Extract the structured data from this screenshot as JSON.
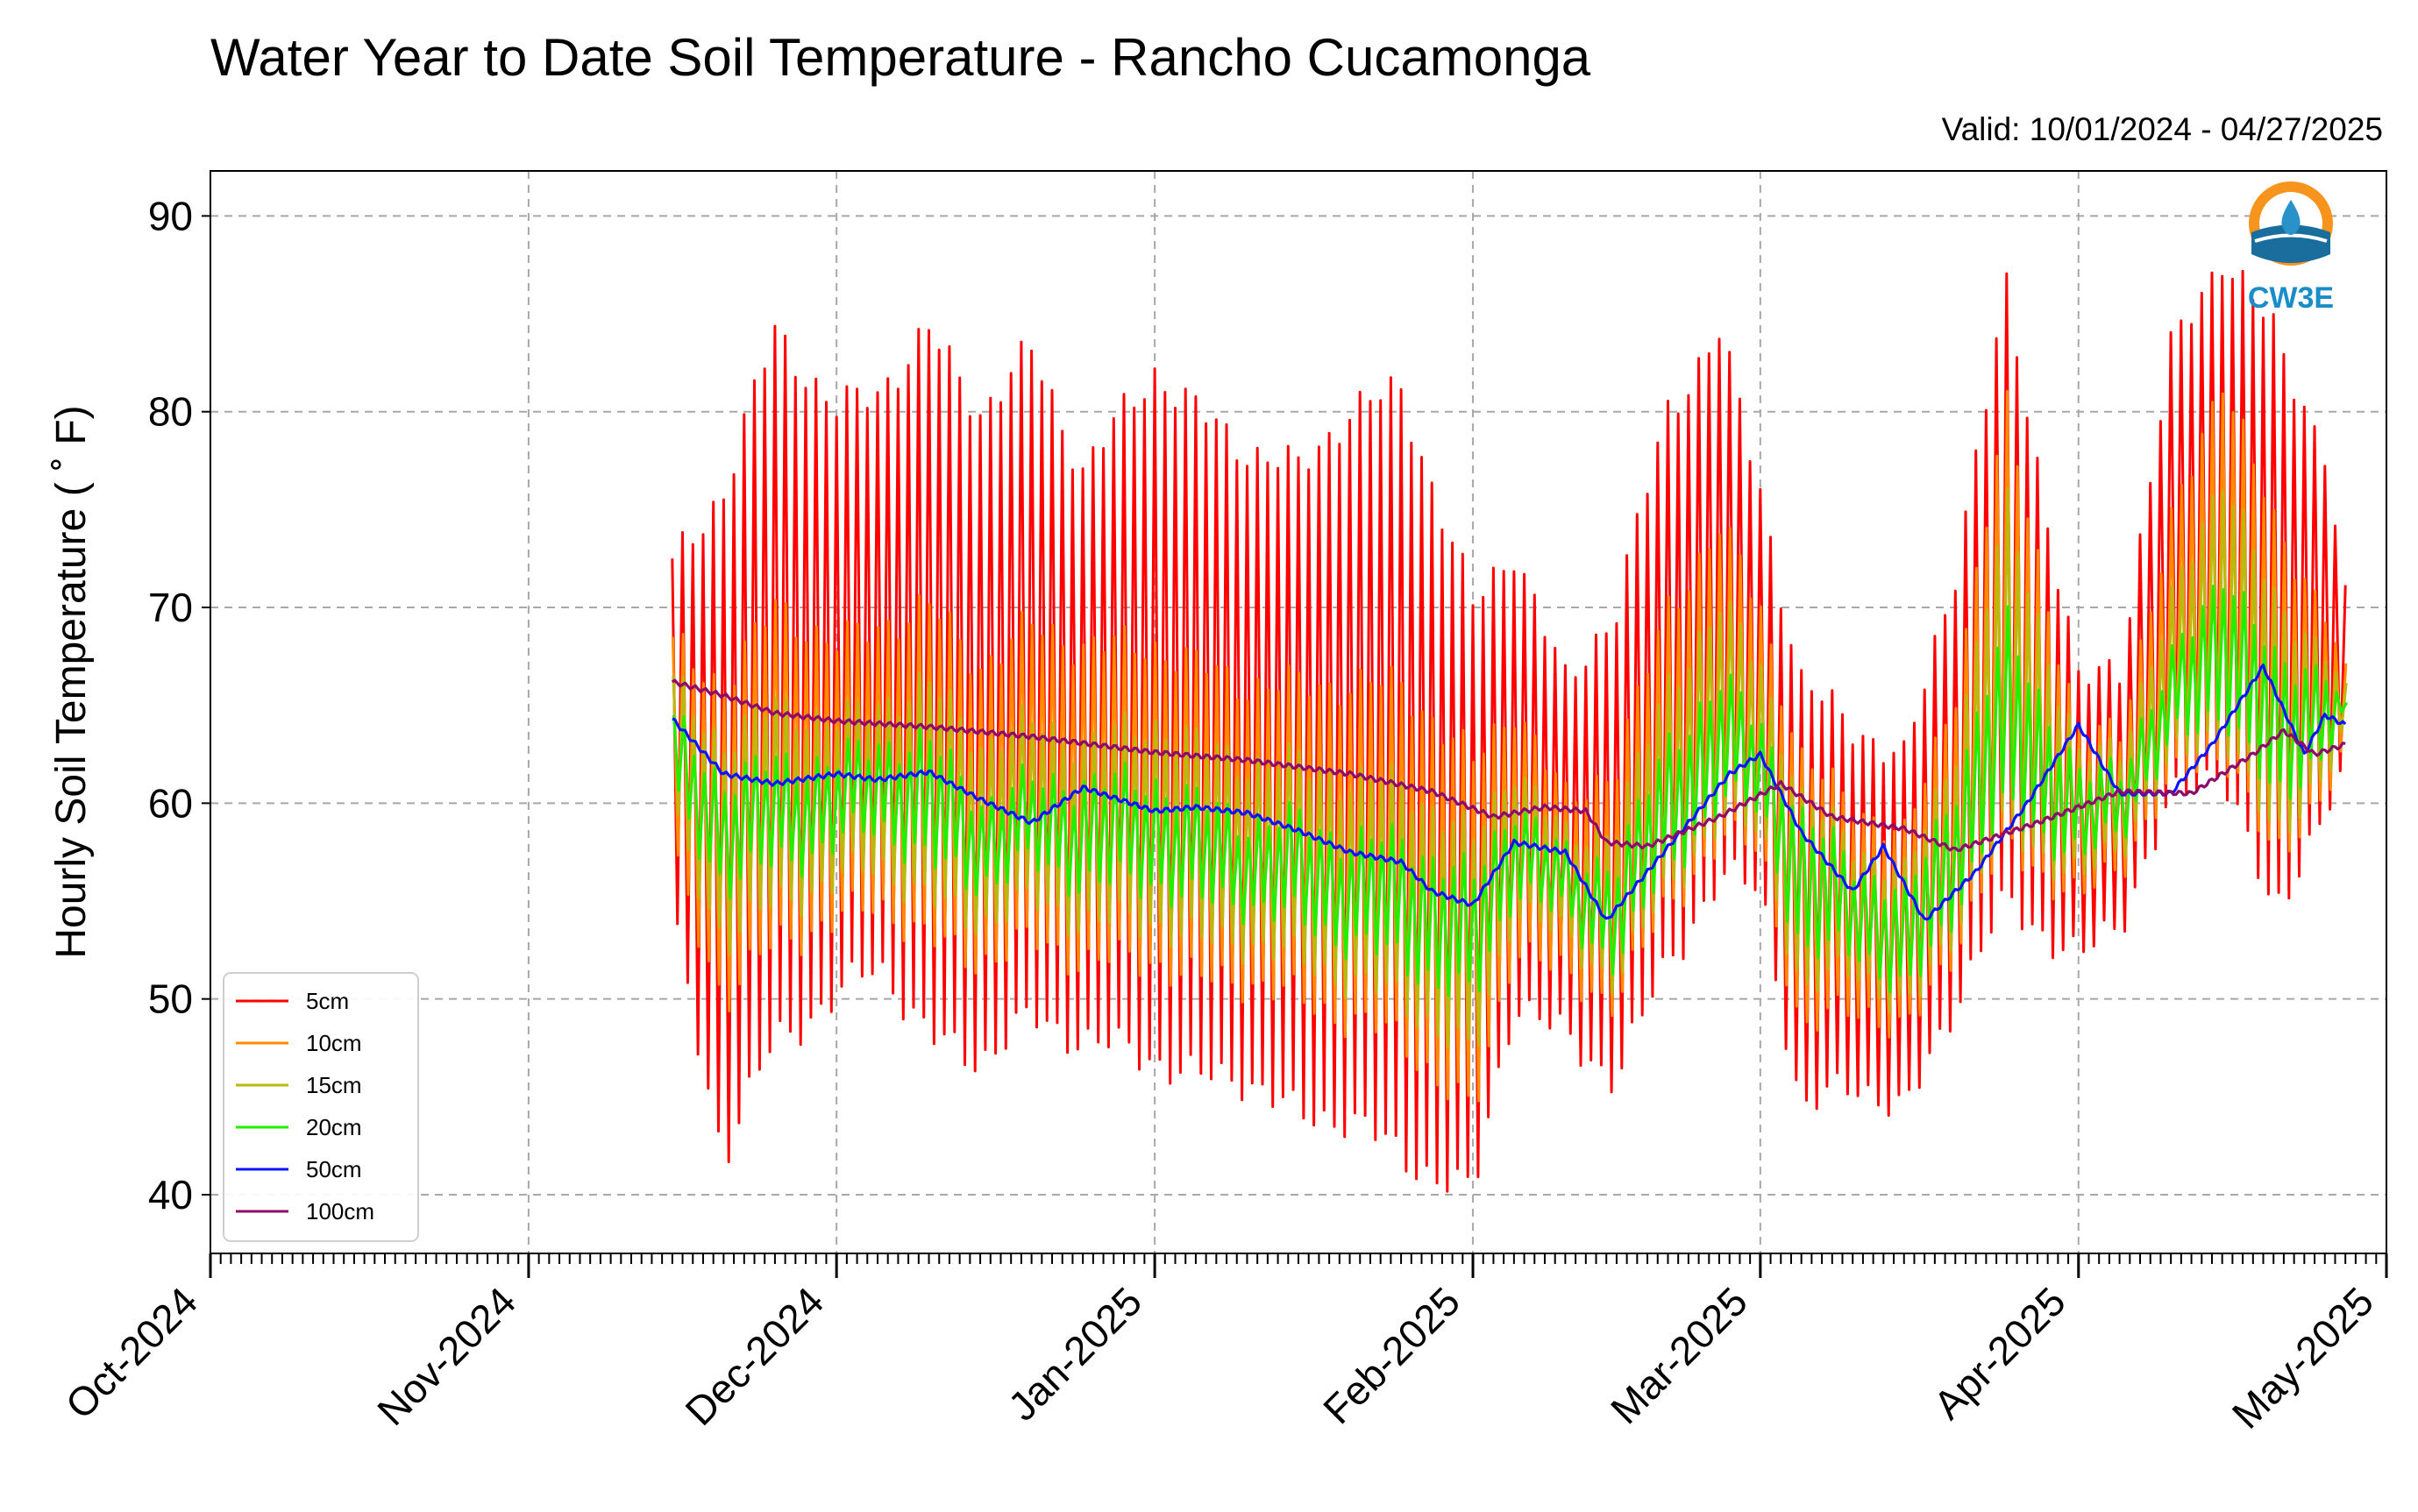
{
  "chart_data": {
    "type": "line",
    "title": "Water Year to Date Soil Temperature - Rancho Cucamonga",
    "subtitle": "Valid: 10/01/2024 - 04/27/2025",
    "ylabel": "Hourly Soil Temperature ( ˚ F)",
    "xlabel": "",
    "xlim": [
      "2024-10-01",
      "2025-05-01"
    ],
    "ylim": [
      37,
      92.3
    ],
    "yticks": [
      40,
      50,
      60,
      70,
      80,
      90
    ],
    "xticks": [
      "2024-10-01",
      "2024-11-01",
      "2024-12-01",
      "2025-01-01",
      "2025-02-01",
      "2025-03-01",
      "2025-04-01",
      "2025-05-01"
    ],
    "xtick_labels": [
      "Oct-2024",
      "Nov-2024",
      "Dec-2024",
      "Jan-2025",
      "Feb-2025",
      "Mar-2025",
      "Apr-2025",
      "May-2025"
    ],
    "grid": true,
    "legend_position": "lower-left",
    "logo_text": "CW3E",
    "data_start": "2024-11-15",
    "data_end": "2025-04-27",
    "series": [
      {
        "name": "5cm",
        "color": "#ff0000",
        "kind": "diurnal",
        "dates": [
          "2024-11-15",
          "2024-11-20",
          "2024-11-25",
          "2024-12-01",
          "2024-12-05",
          "2024-12-10",
          "2024-12-15",
          "2024-12-20",
          "2024-12-25",
          "2025-01-01",
          "2025-01-05",
          "2025-01-10",
          "2025-01-15",
          "2025-01-20",
          "2025-01-25",
          "2025-02-01",
          "2025-02-05",
          "2025-02-10",
          "2025-02-15",
          "2025-02-20",
          "2025-02-25",
          "2025-03-01",
          "2025-03-05",
          "2025-03-10",
          "2025-03-15",
          "2025-03-20",
          "2025-03-25",
          "2025-04-01",
          "2025-04-05",
          "2025-04-10",
          "2025-04-15",
          "2025-04-20",
          "2025-04-25",
          "2025-04-27"
        ],
        "max": [
          72,
          76,
          84,
          80,
          81,
          84,
          80,
          83,
          77,
          82,
          80,
          78,
          77,
          80,
          81,
          70,
          73,
          66,
          70,
          80,
          84,
          76,
          66,
          64,
          62,
          72,
          86,
          66,
          67,
          83,
          88,
          84,
          78,
          70
        ],
        "min": [
          54,
          42,
          48,
          50,
          52,
          48,
          47,
          49,
          48,
          47,
          46,
          46,
          44,
          44,
          42,
          40,
          50,
          48,
          46,
          52,
          56,
          56,
          44,
          46,
          44,
          50,
          55,
          52,
          54,
          60,
          62,
          54,
          60,
          61
        ]
      },
      {
        "name": "10cm",
        "color": "#ff8c00",
        "kind": "diurnal",
        "dates": [
          "2024-11-15",
          "2024-11-20",
          "2024-11-25",
          "2024-12-01",
          "2024-12-05",
          "2024-12-10",
          "2024-12-15",
          "2024-12-20",
          "2024-12-25",
          "2025-01-01",
          "2025-01-05",
          "2025-01-10",
          "2025-01-15",
          "2025-01-20",
          "2025-01-25",
          "2025-02-01",
          "2025-02-05",
          "2025-02-10",
          "2025-02-15",
          "2025-02-20",
          "2025-02-25",
          "2025-03-01",
          "2025-03-05",
          "2025-03-10",
          "2025-03-15",
          "2025-03-20",
          "2025-03-25",
          "2025-04-01",
          "2025-04-05",
          "2025-04-10",
          "2025-04-15",
          "2025-04-20",
          "2025-04-25",
          "2025-04-27"
        ],
        "max": [
          68,
          66,
          70,
          68,
          69,
          70,
          67,
          69,
          68,
          68,
          67,
          66,
          66,
          66,
          66,
          62,
          65,
          60,
          62,
          70,
          74,
          70,
          62,
          60,
          58,
          66,
          80,
          63,
          64,
          74,
          82,
          74,
          70,
          66
        ],
        "min": [
          57,
          50,
          53,
          54,
          55,
          53,
          52,
          53,
          52,
          52,
          51,
          51,
          50,
          49,
          48,
          44,
          53,
          51,
          50,
          55,
          58,
          58,
          48,
          50,
          48,
          53,
          58,
          55,
          57,
          61,
          63,
          57,
          61,
          62
        ]
      },
      {
        "name": "15cm",
        "color": "#b9b90f",
        "kind": "diurnal",
        "dates": [
          "2024-11-15",
          "2024-11-20",
          "2024-11-25",
          "2024-12-01",
          "2024-12-05",
          "2024-12-10",
          "2024-12-15",
          "2024-12-20",
          "2024-12-25",
          "2025-01-01",
          "2025-01-05",
          "2025-01-10",
          "2025-01-15",
          "2025-01-20",
          "2025-01-25",
          "2025-02-01",
          "2025-02-05",
          "2025-02-10",
          "2025-02-15",
          "2025-02-20",
          "2025-02-25",
          "2025-03-01",
          "2025-03-05",
          "2025-03-10",
          "2025-03-15",
          "2025-03-20",
          "2025-03-25",
          "2025-04-01",
          "2025-04-05",
          "2025-04-10",
          "2025-04-15",
          "2025-04-20",
          "2025-04-25",
          "2025-04-27"
        ],
        "max": [
          66,
          63,
          65,
          64,
          65,
          66,
          63,
          64,
          63,
          64,
          63,
          62,
          62,
          61,
          61,
          58,
          62,
          58,
          59,
          66,
          70,
          67,
          60,
          58,
          56,
          63,
          75,
          62,
          63,
          70,
          77,
          70,
          68,
          65
        ],
        "min": [
          59,
          53,
          55,
          56,
          57,
          55,
          54,
          55,
          54,
          54,
          53,
          53,
          52,
          51,
          50,
          47,
          55,
          53,
          51,
          56,
          59,
          59,
          50,
          52,
          49,
          54,
          59,
          56,
          58,
          62,
          64,
          58,
          62,
          63
        ]
      },
      {
        "name": "20cm",
        "color": "#22ee00",
        "kind": "diurnal",
        "dates": [
          "2024-11-15",
          "2024-11-20",
          "2024-11-25",
          "2024-12-01",
          "2024-12-05",
          "2024-12-10",
          "2024-12-15",
          "2024-12-20",
          "2024-12-25",
          "2025-01-01",
          "2025-01-05",
          "2025-01-10",
          "2025-01-15",
          "2025-01-20",
          "2025-01-25",
          "2025-02-01",
          "2025-02-05",
          "2025-02-10",
          "2025-02-15",
          "2025-02-20",
          "2025-02-25",
          "2025-03-01",
          "2025-03-05",
          "2025-03-10",
          "2025-03-15",
          "2025-03-20",
          "2025-03-25",
          "2025-04-01",
          "2025-04-05",
          "2025-04-10",
          "2025-04-15",
          "2025-04-20",
          "2025-04-25",
          "2025-04-27"
        ],
        "max": [
          64,
          61,
          62,
          62,
          63,
          63,
          60,
          61,
          61,
          61,
          60,
          59,
          59,
          58,
          58,
          56,
          60,
          57,
          57,
          63,
          66,
          64,
          59,
          57,
          55,
          61,
          69,
          61,
          62,
          67,
          72,
          67,
          67,
          64
        ],
        "min": [
          60,
          56,
          57,
          58,
          59,
          57,
          56,
          57,
          56,
          56,
          55,
          55,
          54,
          53,
          52,
          50,
          56,
          54,
          52,
          57,
          60,
          60,
          52,
          53,
          50,
          55,
          60,
          57,
          59,
          63,
          65,
          60,
          63,
          64
        ]
      },
      {
        "name": "50cm",
        "color": "#0a14ff",
        "kind": "smooth",
        "points": [
          [
            "2024-11-15",
            64.3
          ],
          [
            "2024-11-20",
            61.5
          ],
          [
            "2024-11-25",
            61
          ],
          [
            "2024-12-01",
            61.5
          ],
          [
            "2024-12-05",
            61.2
          ],
          [
            "2024-12-10",
            61.6
          ],
          [
            "2024-12-15",
            60.2
          ],
          [
            "2024-12-20",
            59
          ],
          [
            "2024-12-25",
            60.8
          ],
          [
            "2025-01-01",
            59.6
          ],
          [
            "2025-01-05",
            59.8
          ],
          [
            "2025-01-10",
            59.5
          ],
          [
            "2025-01-15",
            58.6
          ],
          [
            "2025-01-20",
            57.5
          ],
          [
            "2025-01-25",
            57
          ],
          [
            "2025-01-28",
            55.5
          ],
          [
            "2025-02-01",
            54.8
          ],
          [
            "2025-02-05",
            58
          ],
          [
            "2025-02-10",
            57.5
          ],
          [
            "2025-02-14",
            54
          ],
          [
            "2025-02-18",
            56.5
          ],
          [
            "2025-02-22",
            59
          ],
          [
            "2025-02-26",
            61.5
          ],
          [
            "2025-03-01",
            62.5
          ],
          [
            "2025-03-05",
            58.5
          ],
          [
            "2025-03-10",
            55.5
          ],
          [
            "2025-03-13",
            57.8
          ],
          [
            "2025-03-17",
            54
          ],
          [
            "2025-03-22",
            56.5
          ],
          [
            "2025-03-27",
            60
          ],
          [
            "2025-04-01",
            64
          ],
          [
            "2025-04-05",
            60.5
          ],
          [
            "2025-04-10",
            60.5
          ],
          [
            "2025-04-14",
            63
          ],
          [
            "2025-04-19",
            67
          ],
          [
            "2025-04-23",
            62.5
          ],
          [
            "2025-04-25",
            64.5
          ],
          [
            "2025-04-27",
            64
          ]
        ]
      },
      {
        "name": "100cm",
        "color": "#8b0a6a",
        "kind": "smooth",
        "points": [
          [
            "2024-11-15",
            66.2
          ],
          [
            "2024-11-20",
            65.5
          ],
          [
            "2024-11-25",
            64.6
          ],
          [
            "2024-12-01",
            64.2
          ],
          [
            "2024-12-10",
            63.9
          ],
          [
            "2024-12-20",
            63.4
          ],
          [
            "2025-01-01",
            62.6
          ],
          [
            "2025-01-10",
            62.2
          ],
          [
            "2025-01-20",
            61.5
          ],
          [
            "2025-01-28",
            60.6
          ],
          [
            "2025-02-03",
            59.3
          ],
          [
            "2025-02-08",
            59.8
          ],
          [
            "2025-02-12",
            59.6
          ],
          [
            "2025-02-14",
            58
          ],
          [
            "2025-02-18",
            57.8
          ],
          [
            "2025-02-25",
            59.3
          ],
          [
            "2025-03-03",
            61
          ],
          [
            "2025-03-08",
            59.3
          ],
          [
            "2025-03-15",
            58.7
          ],
          [
            "2025-03-20",
            57.6
          ],
          [
            "2025-03-28",
            59
          ],
          [
            "2025-04-05",
            60.6
          ],
          [
            "2025-04-12",
            60.5
          ],
          [
            "2025-04-18",
            62.5
          ],
          [
            "2025-04-21",
            63.7
          ],
          [
            "2025-04-24",
            62.5
          ],
          [
            "2025-04-27",
            63
          ]
        ]
      }
    ]
  }
}
